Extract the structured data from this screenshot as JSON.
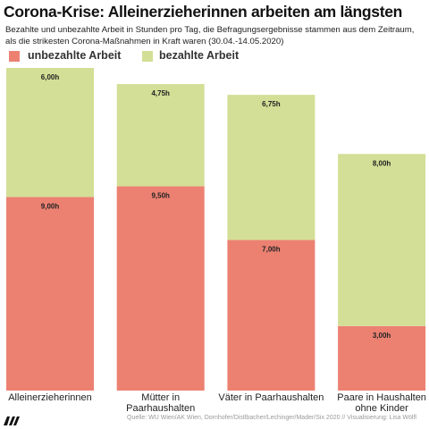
{
  "chart_data": {
    "type": "stacked-bar",
    "title": "Corona-Krise: Alleinerzieherinnen arbeiten am längsten",
    "subtitle": "Bezahlte und unbezahlte Arbeit in Stunden pro Tag, die Befragungsergebnisse stammen aus dem Zeitraum, als die strikesten Corona-Maßnahmen in Kraft waren (30.04.-14.05.2020)",
    "source": "Quelle: WU Wien/AK Wien, Dornhofer/Distlbacher/Lechinger/Mader/Six 2020 // Visualisierung: Lisa Wölfl",
    "categories": [
      "Alleinerzieherinnen",
      "Mütter in Paarhaushalten",
      "Väter in Paarhaushalten",
      "Paare in Haushalten ohne Kinder"
    ],
    "series": [
      {
        "name": "unbezahlte Arbeit",
        "color": "#ec8172",
        "values": [
          9,
          9.5,
          7,
          3
        ],
        "value_labels": [
          "9,00h",
          "9,50h",
          "7,00h",
          "3,00h"
        ]
      },
      {
        "name": "bezahlte Arbeit",
        "color": "#d3df96",
        "values": [
          6,
          4.75,
          6.75,
          8
        ],
        "value_labels": [
          "6,00h",
          "4,75h",
          "6,75h",
          "8,00h"
        ]
      }
    ],
    "ylim": [
      0,
      15
    ]
  }
}
